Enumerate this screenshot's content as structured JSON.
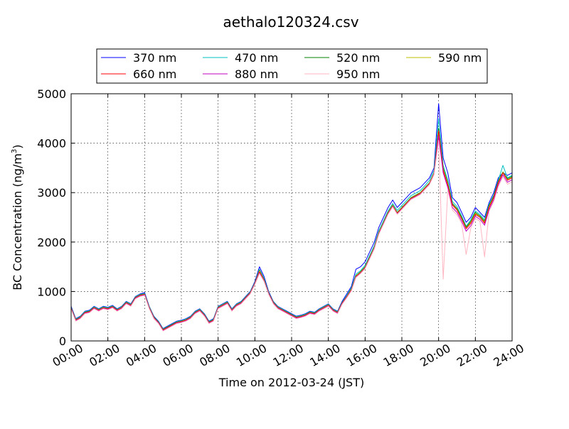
{
  "chart_data": {
    "type": "line",
    "title": "aethalo120324.csv",
    "xlabel": "Time on 2012-03-24 (JST)",
    "ylabel_main": "BC Concentration (ng/m",
    "ylabel_sup": "3",
    "ylabel_tail": ")",
    "xlim": [
      0,
      24
    ],
    "ylim": [
      0,
      5000
    ],
    "grid": true,
    "legend": "top, above plot",
    "x_ticks": [
      {
        "v": 0,
        "label": "00:00"
      },
      {
        "v": 2,
        "label": "02:00"
      },
      {
        "v": 4,
        "label": "04:00"
      },
      {
        "v": 6,
        "label": "06:00"
      },
      {
        "v": 8,
        "label": "08:00"
      },
      {
        "v": 10,
        "label": "10:00"
      },
      {
        "v": 12,
        "label": "12:00"
      },
      {
        "v": 14,
        "label": "14:00"
      },
      {
        "v": 16,
        "label": "16:00"
      },
      {
        "v": 18,
        "label": "18:00"
      },
      {
        "v": 20,
        "label": "20:00"
      },
      {
        "v": 22,
        "label": "22:00"
      },
      {
        "v": 24,
        "label": "24:00"
      }
    ],
    "y_ticks": [
      {
        "v": 0,
        "label": "0"
      },
      {
        "v": 1000,
        "label": "1000"
      },
      {
        "v": 2000,
        "label": "2000"
      },
      {
        "v": 3000,
        "label": "3000"
      },
      {
        "v": 4000,
        "label": "4000"
      },
      {
        "v": 5000,
        "label": "5000"
      }
    ],
    "x_time_points": [
      "00:00",
      "00:15",
      "00:30",
      "00:45",
      "01:00",
      "01:15",
      "01:30",
      "01:45",
      "02:00",
      "02:15",
      "02:30",
      "02:45",
      "03:00",
      "03:15",
      "03:30",
      "03:45",
      "04:00",
      "04:15",
      "04:30",
      "04:45",
      "05:00",
      "05:15",
      "05:30",
      "05:45",
      "06:00",
      "06:15",
      "06:30",
      "06:45",
      "07:00",
      "07:15",
      "07:30",
      "07:45",
      "08:00",
      "08:15",
      "08:30",
      "08:45",
      "09:00",
      "09:15",
      "09:30",
      "09:45",
      "10:00",
      "10:15",
      "10:30",
      "10:45",
      "11:00",
      "11:15",
      "11:30",
      "11:45",
      "12:00",
      "12:15",
      "12:30",
      "12:45",
      "13:00",
      "13:15",
      "13:30",
      "13:45",
      "14:00",
      "14:15",
      "14:30",
      "14:45",
      "15:00",
      "15:15",
      "15:30",
      "15:45",
      "16:00",
      "16:15",
      "16:30",
      "16:45",
      "17:00",
      "17:15",
      "17:30",
      "17:45",
      "18:00",
      "18:15",
      "18:30",
      "18:45",
      "19:00",
      "19:15",
      "19:30",
      "19:45",
      "20:00",
      "20:15",
      "20:30",
      "20:45",
      "21:00",
      "21:15",
      "21:30",
      "21:45",
      "22:00",
      "22:15",
      "22:30",
      "22:45",
      "23:00",
      "23:15",
      "23:30",
      "23:45",
      "24:00"
    ],
    "series": [
      {
        "name": "370 nm",
        "color": "#0000ff",
        "values": [
          700,
          450,
          500,
          600,
          620,
          700,
          650,
          700,
          680,
          720,
          650,
          700,
          800,
          750,
          900,
          950,
          980,
          700,
          500,
          400,
          250,
          300,
          350,
          400,
          420,
          450,
          500,
          600,
          650,
          550,
          400,
          450,
          700,
          750,
          800,
          650,
          750,
          800,
          900,
          1000,
          1200,
          1500,
          1300,
          1000,
          800,
          700,
          650,
          600,
          550,
          500,
          520,
          550,
          600,
          580,
          650,
          700,
          750,
          650,
          600,
          800,
          950,
          1100,
          1450,
          1500,
          1600,
          1800,
          2000,
          2300,
          2500,
          2700,
          2850,
          2700,
          2800,
          2900,
          3000,
          3050,
          3100,
          3200,
          3300,
          3500,
          4800,
          3700,
          3400,
          2900,
          2800,
          2600,
          2400,
          2500,
          2700,
          2600,
          2500,
          2800,
          3000,
          3300,
          3400,
          3350,
          3400
        ]
      },
      {
        "name": "470 nm",
        "color": "#00bfbf",
        "values": [
          680,
          440,
          490,
          590,
          610,
          690,
          640,
          690,
          670,
          710,
          640,
          690,
          790,
          740,
          890,
          940,
          960,
          690,
          490,
          390,
          240,
          290,
          340,
          390,
          410,
          440,
          490,
          590,
          640,
          540,
          390,
          440,
          690,
          740,
          790,
          640,
          740,
          790,
          890,
          990,
          1180,
          1450,
          1260,
          980,
          790,
          690,
          640,
          590,
          540,
          490,
          510,
          540,
          590,
          570,
          640,
          690,
          740,
          640,
          590,
          780,
          920,
          1070,
          1350,
          1420,
          1530,
          1730,
          1930,
          2230,
          2430,
          2630,
          2780,
          2640,
          2740,
          2840,
          2940,
          2990,
          3040,
          3140,
          3250,
          3450,
          4500,
          3550,
          3250,
          2820,
          2720,
          2530,
          2320,
          2450,
          2630,
          2560,
          2450,
          2760,
          2950,
          3250,
          3550,
          3300,
          3350
        ]
      },
      {
        "name": "520 nm",
        "color": "#008000",
        "values": [
          670,
          430,
          480,
          580,
          600,
          680,
          630,
          680,
          660,
          700,
          630,
          680,
          780,
          730,
          880,
          930,
          950,
          680,
          480,
          380,
          230,
          280,
          330,
          380,
          400,
          430,
          480,
          580,
          630,
          530,
          380,
          430,
          680,
          730,
          780,
          630,
          730,
          780,
          880,
          980,
          1170,
          1430,
          1240,
          970,
          780,
          680,
          630,
          580,
          530,
          480,
          500,
          530,
          580,
          560,
          630,
          680,
          730,
          630,
          580,
          770,
          900,
          1050,
          1320,
          1400,
          1500,
          1700,
          1900,
          2200,
          2400,
          2600,
          2750,
          2600,
          2700,
          2800,
          2900,
          2950,
          3000,
          3100,
          3200,
          3400,
          4300,
          3500,
          3200,
          2780,
          2680,
          2500,
          2300,
          2420,
          2600,
          2530,
          2420,
          2740,
          2930,
          3230,
          3420,
          3280,
          3330
        ]
      },
      {
        "name": "590 nm",
        "color": "#bfbf00",
        "values": [
          665,
          425,
          475,
          575,
          595,
          675,
          625,
          675,
          655,
          695,
          625,
          675,
          775,
          725,
          875,
          925,
          945,
          675,
          475,
          375,
          225,
          275,
          325,
          375,
          395,
          425,
          475,
          575,
          625,
          525,
          375,
          425,
          675,
          725,
          775,
          625,
          725,
          775,
          875,
          975,
          1165,
          1420,
          1230,
          965,
          775,
          675,
          625,
          575,
          525,
          475,
          495,
          525,
          575,
          555,
          625,
          675,
          725,
          625,
          575,
          765,
          895,
          1040,
          1310,
          1390,
          1490,
          1690,
          1890,
          2190,
          2390,
          2590,
          2740,
          2590,
          2690,
          2790,
          2890,
          2940,
          2990,
          3090,
          3190,
          3390,
          4250,
          3480,
          3180,
          2760,
          2660,
          2480,
          2280,
          2400,
          2580,
          2510,
          2400,
          2720,
          2910,
          3210,
          3410,
          3260,
          3310
        ]
      },
      {
        "name": "660 nm",
        "color": "#ff0000",
        "values": [
          660,
          420,
          470,
          570,
          590,
          670,
          620,
          670,
          650,
          690,
          620,
          670,
          770,
          720,
          870,
          920,
          940,
          670,
          470,
          370,
          220,
          270,
          320,
          370,
          390,
          420,
          470,
          570,
          620,
          520,
          370,
          420,
          670,
          720,
          770,
          620,
          720,
          770,
          870,
          970,
          1160,
          1400,
          1220,
          960,
          770,
          670,
          620,
          570,
          520,
          470,
          490,
          520,
          570,
          550,
          620,
          670,
          720,
          620,
          570,
          760,
          890,
          1030,
          1300,
          1380,
          1480,
          1680,
          1880,
          2180,
          2380,
          2580,
          2730,
          2580,
          2680,
          2780,
          2880,
          2930,
          2980,
          3080,
          3180,
          3380,
          4250,
          3450,
          3150,
          2750,
          2650,
          2470,
          2270,
          2380,
          2560,
          2500,
          2380,
          2700,
          2900,
          3200,
          3400,
          3250,
          3300
        ]
      },
      {
        "name": "880 nm",
        "color": "#bf00bf",
        "values": [
          650,
          410,
          460,
          560,
          580,
          660,
          610,
          660,
          640,
          680,
          610,
          660,
          760,
          710,
          860,
          910,
          930,
          660,
          460,
          360,
          210,
          260,
          310,
          360,
          380,
          410,
          460,
          560,
          610,
          510,
          360,
          410,
          660,
          710,
          760,
          610,
          710,
          760,
          860,
          960,
          1150,
          1380,
          1210,
          950,
          760,
          660,
          610,
          560,
          510,
          460,
          480,
          510,
          560,
          540,
          610,
          660,
          710,
          610,
          560,
          750,
          880,
          1020,
          1290,
          1370,
          1470,
          1670,
          1870,
          2170,
          2370,
          2570,
          2720,
          2570,
          2670,
          2770,
          2870,
          2920,
          2970,
          3070,
          3170,
          3370,
          4150,
          3400,
          3100,
          2700,
          2600,
          2420,
          2220,
          2330,
          2520,
          2460,
          2340,
          2660,
          2860,
          3160,
          3360,
          3210,
          3260
        ]
      },
      {
        "name": "950 nm",
        "color": "#ffb6c1",
        "values": [
          640,
          400,
          450,
          550,
          570,
          650,
          600,
          650,
          630,
          670,
          600,
          650,
          750,
          700,
          850,
          900,
          920,
          650,
          450,
          350,
          200,
          250,
          300,
          350,
          370,
          400,
          450,
          550,
          600,
          500,
          350,
          400,
          650,
          700,
          750,
          600,
          700,
          750,
          850,
          950,
          1140,
          1360,
          1200,
          940,
          750,
          650,
          600,
          550,
          500,
          450,
          470,
          500,
          550,
          530,
          600,
          650,
          700,
          600,
          550,
          740,
          870,
          1010,
          1280,
          1360,
          1460,
          1660,
          1860,
          2160,
          2360,
          2560,
          2710,
          2560,
          2660,
          2760,
          2860,
          2910,
          2960,
          3060,
          3160,
          3360,
          4050,
          1250,
          3050,
          2650,
          2550,
          2380,
          1750,
          2280,
          2480,
          2420,
          1700,
          2620,
          2820,
          3120,
          3320,
          3170,
          3220
        ]
      }
    ]
  }
}
